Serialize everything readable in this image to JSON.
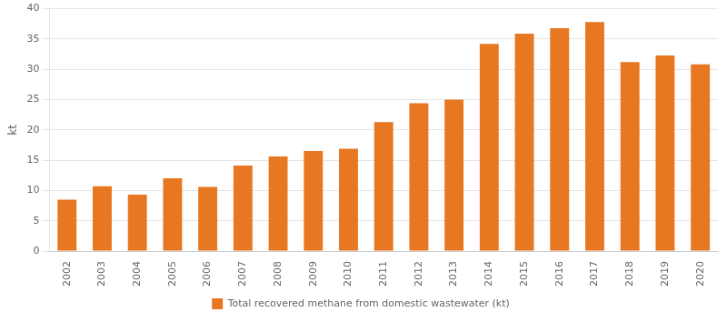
{
  "chart_data": {
    "type": "bar",
    "categories": [
      "2002",
      "2003",
      "2004",
      "2005",
      "2006",
      "2007",
      "2008",
      "2009",
      "2010",
      "2011",
      "2012",
      "2013",
      "2014",
      "2015",
      "2016",
      "2017",
      "2018",
      "2019",
      "2020"
    ],
    "series": [
      {
        "name": "Total recovered methane from domestic wastewater (kt)",
        "color": "#E87722",
        "values": [
          8.5,
          10.7,
          9.3,
          12.0,
          10.6,
          14.1,
          15.6,
          16.5,
          16.9,
          21.3,
          24.4,
          25.0,
          34.2,
          35.9,
          36.8,
          37.8,
          31.2,
          32.3,
          30.8
        ]
      }
    ],
    "ylabel": "kt",
    "ylim": [
      0,
      40
    ],
    "yticks": [
      0,
      5,
      10,
      15,
      20,
      25,
      30,
      35,
      40
    ],
    "grid": true,
    "legend": "bottom"
  }
}
